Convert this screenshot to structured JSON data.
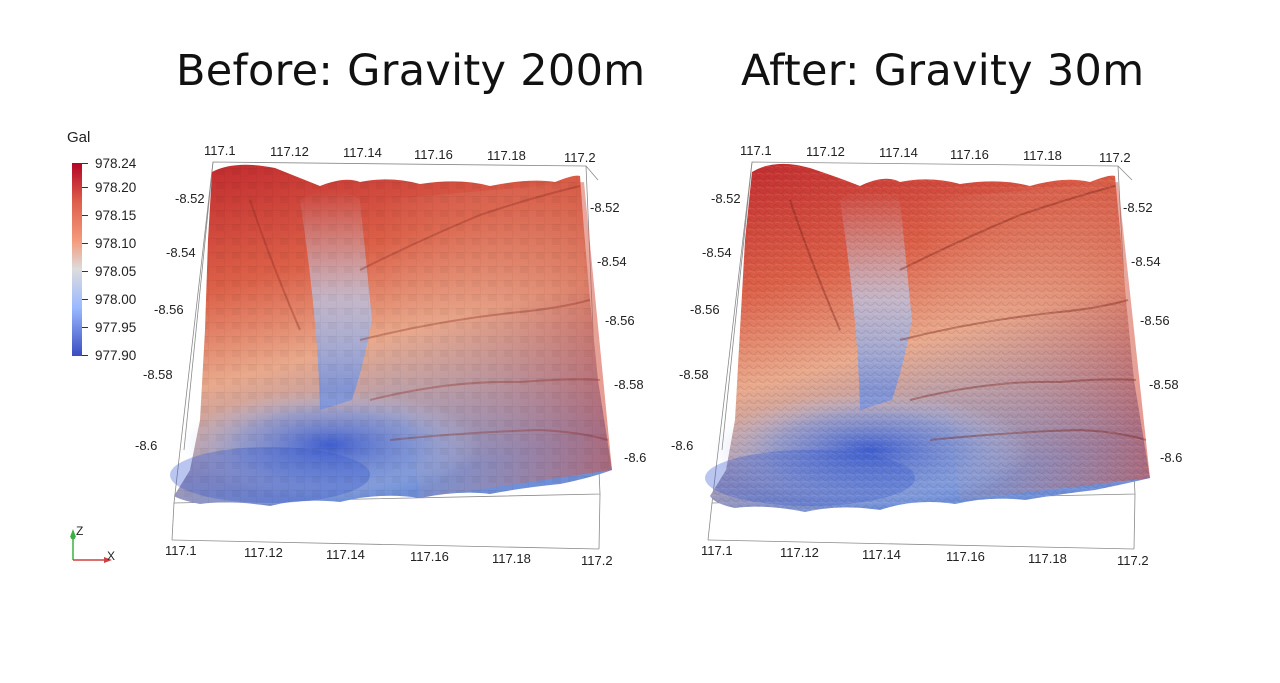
{
  "titles": {
    "before": "Before: Gravity 200m",
    "after": "After: Gravity 30m"
  },
  "legend": {
    "unit": "Gal",
    "labels": [
      "978.24",
      "978.20",
      "978.15",
      "978.10",
      "978.05",
      "978.00",
      "977.95",
      "977.90"
    ],
    "colors": {
      "high": "#b40426",
      "mid": "#dddcdc",
      "low": "#3b4cc0"
    }
  },
  "axes": {
    "top_lon": [
      "117.1",
      "117.12",
      "117.14",
      "117.16",
      "117.18",
      "117.2"
    ],
    "bottom_lon": [
      "117.1",
      "117.12",
      "117.14",
      "117.16",
      "117.18",
      "117.2"
    ],
    "left_lat": [
      "-8.52",
      "-8.54",
      "-8.56",
      "-8.58",
      "-8.6"
    ],
    "right_lat": [
      "-8.52",
      "-8.54",
      "-8.56",
      "-8.58",
      "-8.6"
    ]
  },
  "orientation": {
    "z_label": "Z",
    "x_label": "X"
  }
}
